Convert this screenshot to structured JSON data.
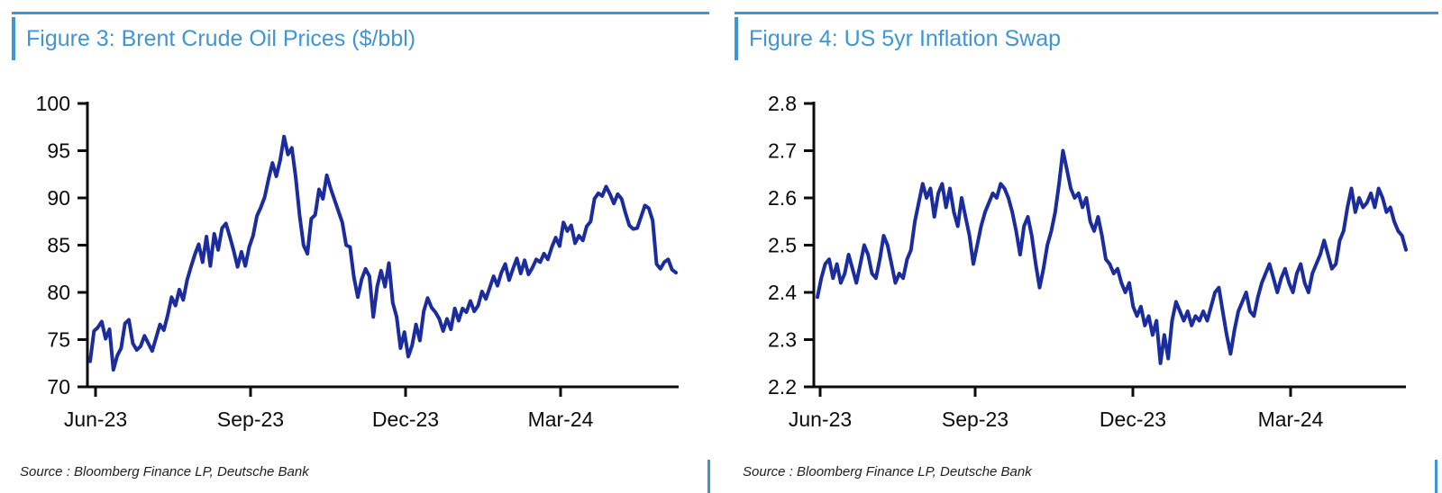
{
  "accent_color": "#3E96D9",
  "axis_color": "#0b0b0b",
  "panels": [
    {
      "title": "Figure 3: Brent Crude Oil Prices ($/bbl)",
      "source": "Source : Bloomberg Finance LP, Deutsche Bank"
    },
    {
      "title": "Figure 4: US 5yr Inflation Swap",
      "source": "Source : Bloomberg Finance LP, Deutsche Bank"
    }
  ],
  "chart_data": [
    {
      "id": "brent-crude",
      "type": "line",
      "title": "Figure 3: Brent Crude Oil Prices ($/bbl)",
      "x_tick_labels": [
        "Jun-23",
        "Sep-23",
        "Dec-23",
        "Mar-24"
      ],
      "y_ticks": [
        70,
        75,
        80,
        85,
        90,
        95,
        100
      ],
      "y_tick_labels": [
        "70",
        "75",
        "80",
        "85",
        "90",
        "95",
        "100"
      ],
      "ylim": [
        70,
        100
      ],
      "x_range": "Jun-2023 to May-2024, daily",
      "legend": "none",
      "grid": false,
      "line_color": "#1b2c9e",
      "values": [
        72.7,
        75.9,
        76.3,
        76.9,
        75.1,
        76.1,
        71.8,
        73.3,
        74.1,
        76.7,
        77.1,
        74.6,
        73.9,
        74.3,
        75.4,
        74.6,
        73.8,
        75.2,
        76.6,
        76.0,
        77.6,
        79.5,
        78.6,
        80.3,
        79.2,
        81.3,
        82.7,
        84.0,
        85.1,
        83.2,
        85.9,
        82.8,
        86.2,
        84.5,
        86.8,
        87.3,
        85.9,
        84.4,
        82.7,
        84.3,
        82.8,
        84.8,
        86.0,
        88.1,
        89.0,
        90.1,
        92.0,
        93.7,
        92.3,
        94.0,
        96.5,
        94.6,
        95.3,
        92.2,
        88.1,
        85.0,
        84.1,
        87.8,
        88.2,
        90.9,
        89.9,
        92.4,
        91.0,
        89.8,
        88.6,
        87.4,
        85.0,
        84.8,
        81.6,
        79.5,
        81.4,
        82.5,
        81.7,
        77.4,
        80.6,
        82.3,
        80.6,
        83.1,
        78.9,
        77.4,
        74.1,
        75.8,
        73.2,
        74.4,
        76.6,
        74.9,
        78.0,
        79.4,
        78.4,
        77.9,
        77.2,
        75.9,
        77.2,
        76.1,
        78.3,
        77.0,
        78.3,
        77.9,
        79.1,
        78.0,
        78.6,
        80.1,
        79.3,
        80.5,
        81.7,
        80.7,
        82.1,
        83.0,
        81.3,
        82.5,
        83.6,
        82.0,
        83.4,
        81.9,
        82.6,
        83.5,
        83.2,
        84.1,
        83.5,
        84.8,
        85.8,
        84.9,
        87.4,
        86.5,
        87.1,
        85.2,
        86.0,
        85.5,
        87.0,
        87.5,
        89.9,
        90.5,
        90.2,
        91.2,
        90.4,
        89.4,
        90.4,
        89.9,
        88.4,
        87.1,
        86.7,
        86.8,
        88.0,
        89.2,
        88.9,
        87.6,
        83.0,
        82.5,
        83.2,
        83.5,
        82.4,
        82.1
      ]
    },
    {
      "id": "us-5yr-inflation-swap",
      "type": "line",
      "title": "Figure 4: US 5yr Inflation Swap",
      "x_tick_labels": [
        "Jun-23",
        "Sep-23",
        "Dec-23",
        "Mar-24"
      ],
      "y_ticks": [
        2.2,
        2.3,
        2.4,
        2.5,
        2.6,
        2.7,
        2.8
      ],
      "y_tick_labels": [
        "2.2",
        "2.3",
        "2.4",
        "2.5",
        "2.6",
        "2.7",
        "2.8"
      ],
      "ylim": [
        2.2,
        2.8
      ],
      "x_range": "Jun-2023 to May-2024, daily",
      "legend": "none",
      "grid": false,
      "line_color": "#1b2c9e",
      "values": [
        2.39,
        2.43,
        2.46,
        2.47,
        2.43,
        2.46,
        2.42,
        2.44,
        2.48,
        2.45,
        2.42,
        2.46,
        2.5,
        2.48,
        2.44,
        2.43,
        2.47,
        2.52,
        2.5,
        2.46,
        2.42,
        2.44,
        2.43,
        2.47,
        2.49,
        2.55,
        2.59,
        2.63,
        2.6,
        2.62,
        2.56,
        2.61,
        2.63,
        2.58,
        2.62,
        2.57,
        2.54,
        2.6,
        2.56,
        2.52,
        2.46,
        2.5,
        2.54,
        2.57,
        2.59,
        2.61,
        2.6,
        2.63,
        2.62,
        2.6,
        2.57,
        2.53,
        2.48,
        2.54,
        2.56,
        2.52,
        2.46,
        2.41,
        2.45,
        2.5,
        2.53,
        2.57,
        2.63,
        2.7,
        2.66,
        2.62,
        2.6,
        2.61,
        2.58,
        2.6,
        2.55,
        2.53,
        2.56,
        2.52,
        2.47,
        2.46,
        2.44,
        2.45,
        2.42,
        2.4,
        2.42,
        2.37,
        2.35,
        2.37,
        2.33,
        2.35,
        2.31,
        2.34,
        2.25,
        2.31,
        2.26,
        2.34,
        2.38,
        2.36,
        2.34,
        2.36,
        2.33,
        2.35,
        2.34,
        2.36,
        2.34,
        2.37,
        2.4,
        2.41,
        2.36,
        2.31,
        2.27,
        2.32,
        2.36,
        2.38,
        2.4,
        2.36,
        2.35,
        2.39,
        2.42,
        2.44,
        2.46,
        2.43,
        2.4,
        2.43,
        2.45,
        2.42,
        2.4,
        2.44,
        2.46,
        2.42,
        2.4,
        2.44,
        2.46,
        2.48,
        2.51,
        2.48,
        2.45,
        2.46,
        2.51,
        2.53,
        2.58,
        2.62,
        2.57,
        2.6,
        2.58,
        2.59,
        2.61,
        2.58,
        2.62,
        2.6,
        2.57,
        2.58,
        2.55,
        2.53,
        2.52,
        2.49
      ]
    }
  ]
}
